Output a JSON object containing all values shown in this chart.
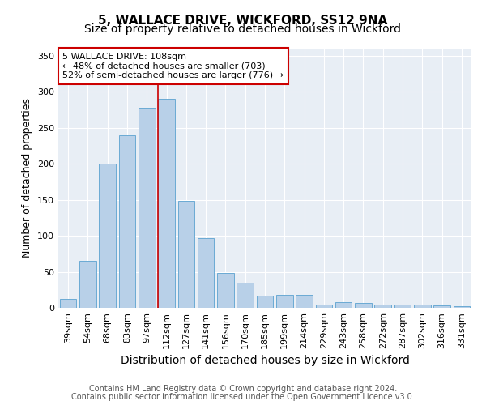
{
  "title": "5, WALLACE DRIVE, WICKFORD, SS12 9NA",
  "subtitle": "Size of property relative to detached houses in Wickford",
  "xlabel": "Distribution of detached houses by size in Wickford",
  "ylabel": "Number of detached properties",
  "categories": [
    "39sqm",
    "54sqm",
    "68sqm",
    "83sqm",
    "97sqm",
    "112sqm",
    "127sqm",
    "141sqm",
    "156sqm",
    "170sqm",
    "185sqm",
    "199sqm",
    "214sqm",
    "229sqm",
    "243sqm",
    "258sqm",
    "272sqm",
    "287sqm",
    "302sqm",
    "316sqm",
    "331sqm"
  ],
  "values": [
    12,
    65,
    200,
    240,
    278,
    290,
    148,
    97,
    48,
    35,
    17,
    18,
    18,
    4,
    8,
    7,
    5,
    4,
    4,
    3,
    2
  ],
  "bar_color": "#b8d0e8",
  "bar_edge_color": "#6aaad4",
  "bar_edge_width": 0.7,
  "marker_bin_index": 5,
  "marker_color": "#cc0000",
  "annotation_line1": "5 WALLACE DRIVE: 108sqm",
  "annotation_line2": "← 48% of detached houses are smaller (703)",
  "annotation_line3": "52% of semi-detached houses are larger (776) →",
  "annotation_box_color": "#ffffff",
  "annotation_box_edge_color": "#cc0000",
  "ylim": [
    0,
    360
  ],
  "yticks": [
    0,
    50,
    100,
    150,
    200,
    250,
    300,
    350
  ],
  "bg_color": "#e8eef5",
  "grid_color": "#ffffff",
  "footer_line1": "Contains HM Land Registry data © Crown copyright and database right 2024.",
  "footer_line2": "Contains public sector information licensed under the Open Government Licence v3.0.",
  "title_fontsize": 11,
  "subtitle_fontsize": 10,
  "xlabel_fontsize": 10,
  "ylabel_fontsize": 9,
  "tick_fontsize": 8,
  "annotation_fontsize": 8,
  "footer_fontsize": 7
}
